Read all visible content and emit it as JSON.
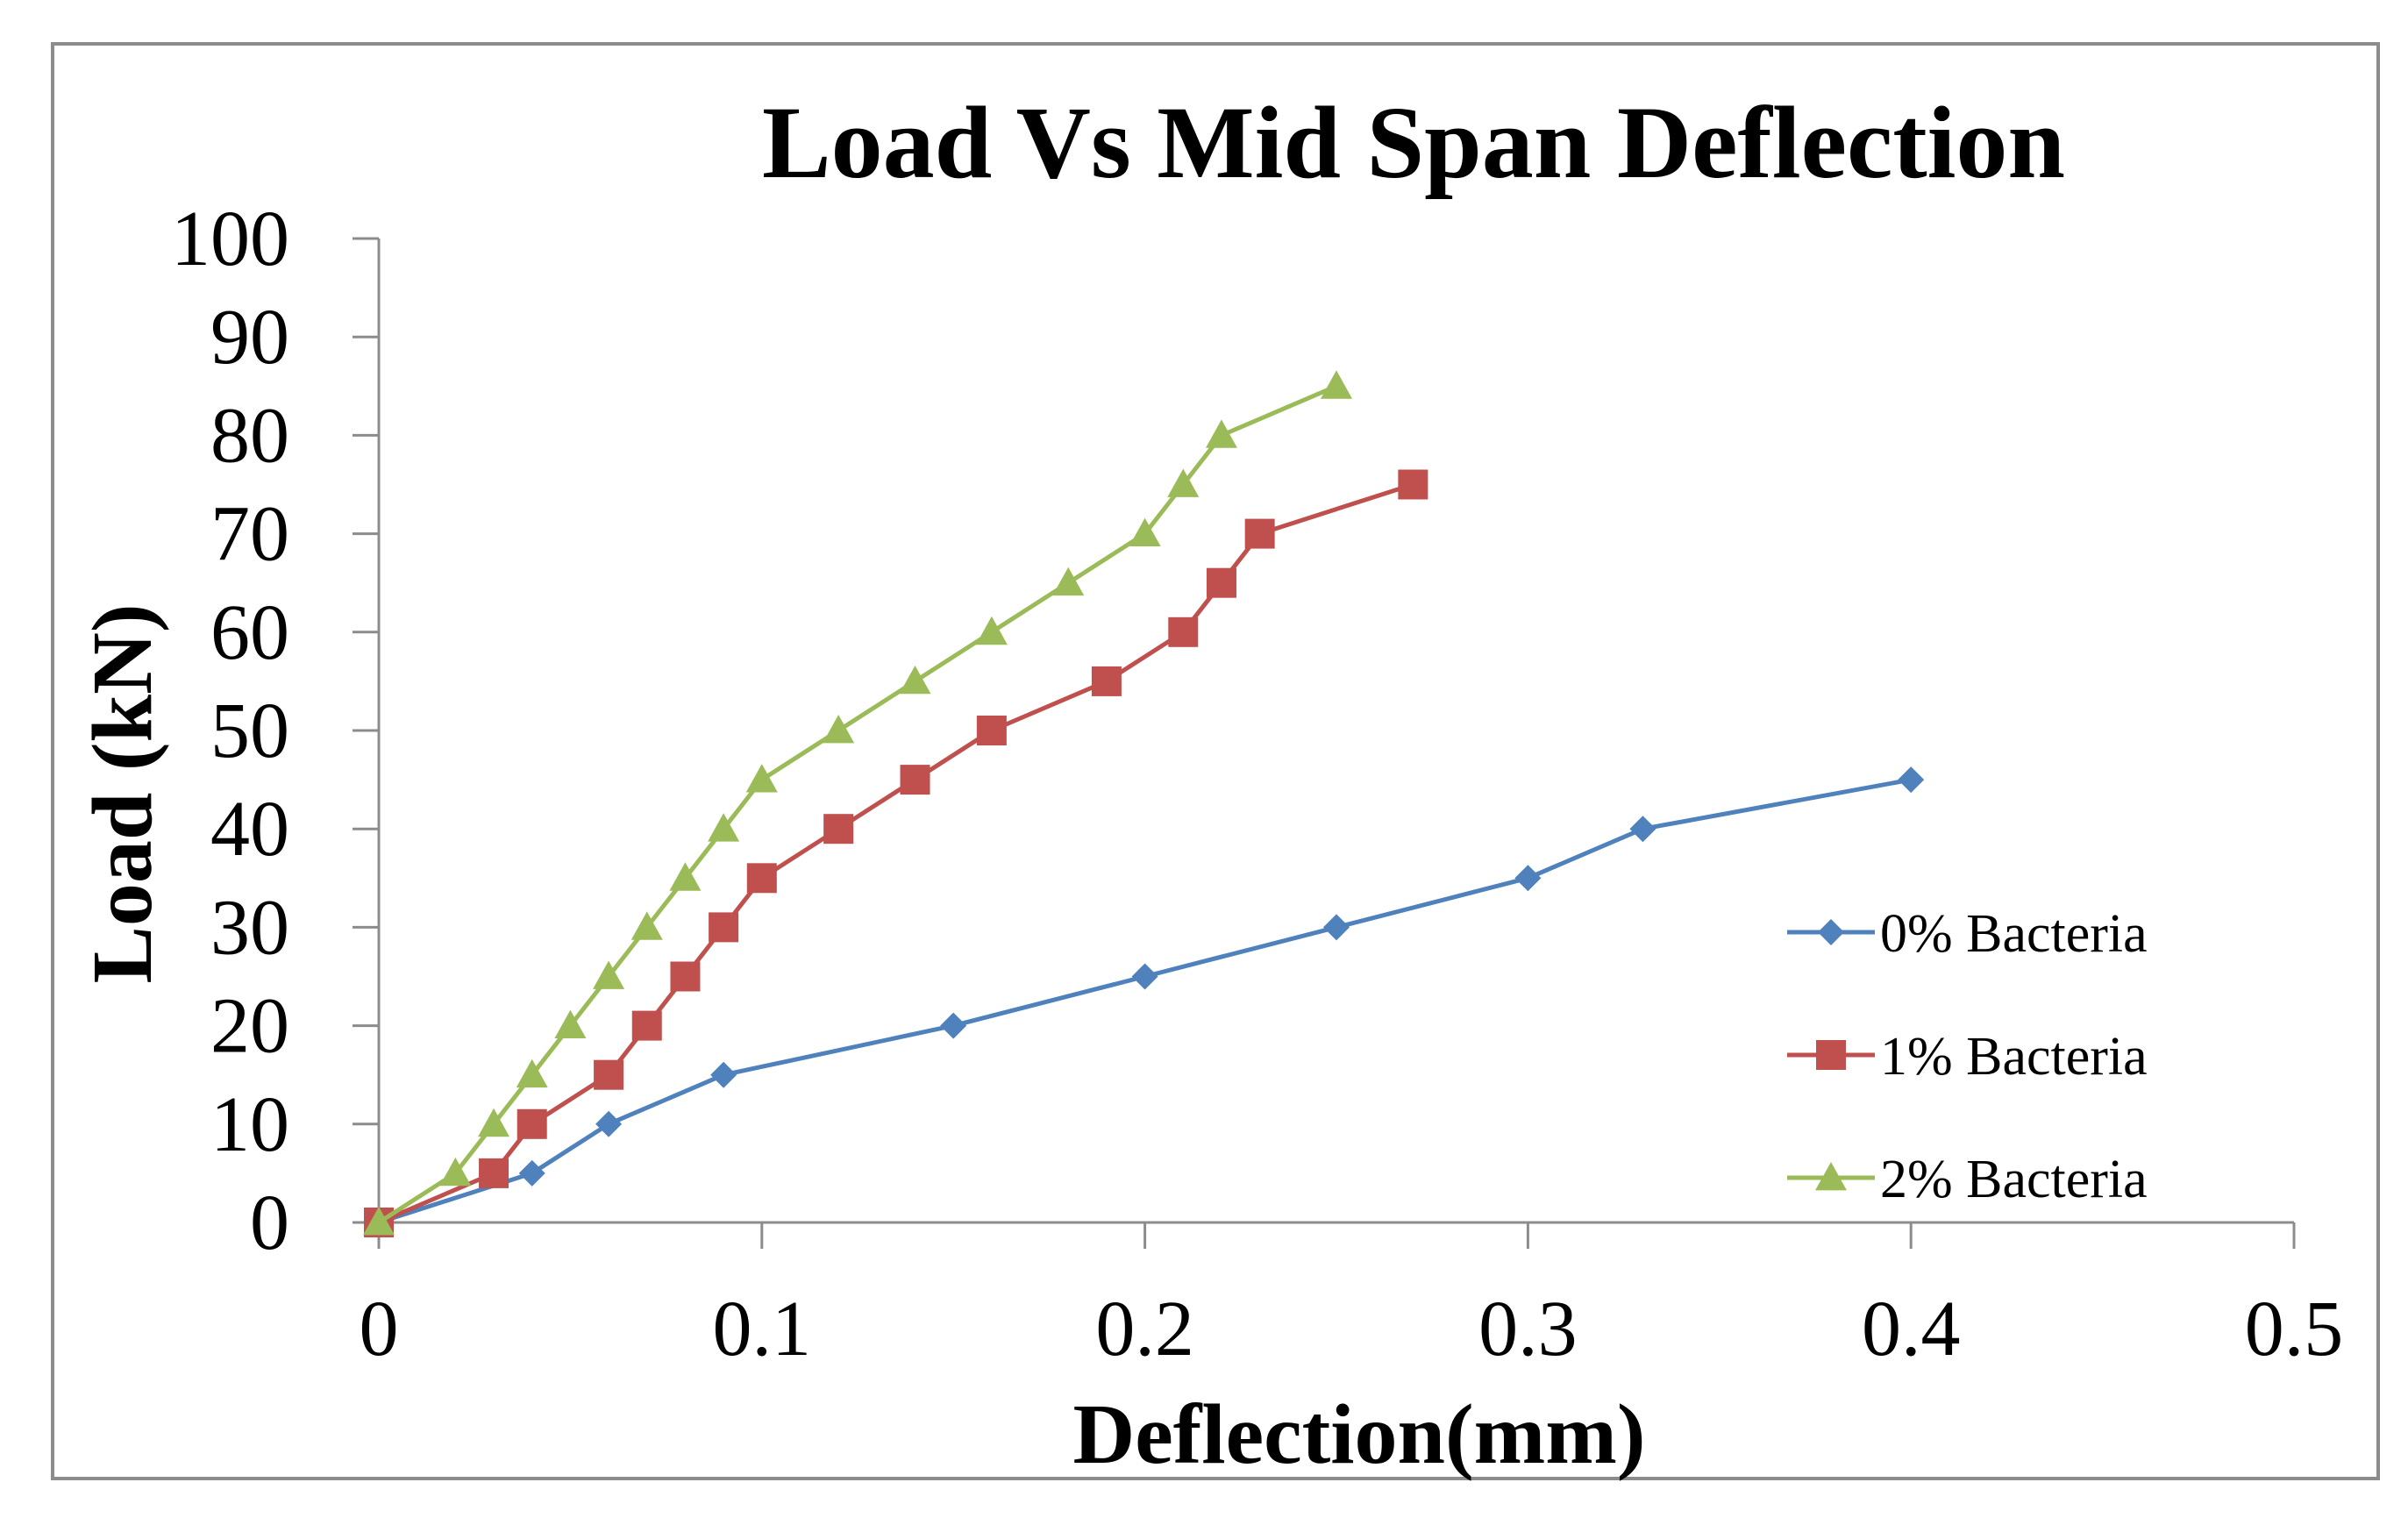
{
  "chart_data": {
    "type": "line",
    "title": "Load Vs Mid Span Deflection",
    "xlabel": "Deflection(mm)",
    "ylabel": "Load (kN)",
    "xlim": [
      0,
      0.5
    ],
    "ylim": [
      0,
      100
    ],
    "x_ticks": [
      "0",
      "0.1",
      "0.2",
      "0.3",
      "0.4",
      "0.5"
    ],
    "x_tick_values": [
      0,
      0.1,
      0.2,
      0.3,
      0.4,
      0.5
    ],
    "y_ticks": [
      "0",
      "10",
      "20",
      "30",
      "40",
      "50",
      "60",
      "70",
      "80",
      "90",
      "100"
    ],
    "y_tick_values": [
      0,
      10,
      20,
      30,
      40,
      50,
      60,
      70,
      80,
      90,
      100
    ],
    "grid": false,
    "legend_position": "right",
    "series": [
      {
        "name": "0% Bacteria",
        "color": "#4f81bd",
        "marker": "diamond",
        "points": [
          [
            0,
            0
          ],
          [
            0.04,
            5
          ],
          [
            0.06,
            10
          ],
          [
            0.09,
            15
          ],
          [
            0.15,
            20
          ],
          [
            0.2,
            25
          ],
          [
            0.25,
            30
          ],
          [
            0.3,
            35
          ],
          [
            0.33,
            40
          ],
          [
            0.4,
            45
          ]
        ]
      },
      {
        "name": "1% Bacteria",
        "color": "#c0504d",
        "marker": "square",
        "points": [
          [
            0,
            0
          ],
          [
            0.03,
            5
          ],
          [
            0.04,
            10
          ],
          [
            0.06,
            15
          ],
          [
            0.07,
            20
          ],
          [
            0.08,
            25
          ],
          [
            0.09,
            30
          ],
          [
            0.1,
            35
          ],
          [
            0.12,
            40
          ],
          [
            0.14,
            45
          ],
          [
            0.16,
            50
          ],
          [
            0.19,
            55
          ],
          [
            0.21,
            60
          ],
          [
            0.22,
            65
          ],
          [
            0.23,
            70
          ],
          [
            0.27,
            75
          ]
        ]
      },
      {
        "name": "2% Bacteria",
        "color": "#9bbb59",
        "marker": "triangle",
        "points": [
          [
            0,
            0
          ],
          [
            0.02,
            5
          ],
          [
            0.03,
            10
          ],
          [
            0.04,
            15
          ],
          [
            0.05,
            20
          ],
          [
            0.06,
            25
          ],
          [
            0.07,
            30
          ],
          [
            0.08,
            35
          ],
          [
            0.09,
            40
          ],
          [
            0.1,
            45
          ],
          [
            0.12,
            50
          ],
          [
            0.14,
            55
          ],
          [
            0.16,
            60
          ],
          [
            0.18,
            65
          ],
          [
            0.2,
            70
          ],
          [
            0.21,
            75
          ],
          [
            0.22,
            80
          ],
          [
            0.25,
            85
          ]
        ]
      }
    ]
  }
}
